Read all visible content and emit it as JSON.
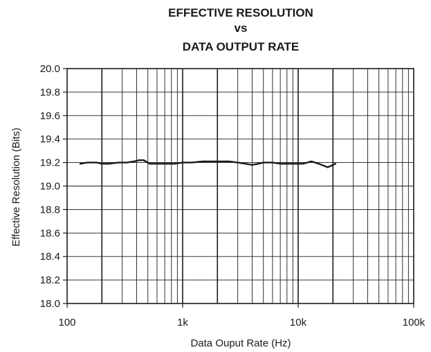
{
  "chart_data": {
    "type": "line",
    "title": [
      "EFFECTIVE RESOLUTION",
      "vs",
      "DATA OUTPUT RATE"
    ],
    "xlabel": "Data Ouput Rate (Hz)",
    "ylabel": "Effective Resolution (Bits)",
    "x_scale": "log",
    "xlim": [
      100,
      100000
    ],
    "ylim": [
      18.0,
      20.0
    ],
    "x_ticks": [
      100,
      1000,
      10000,
      100000
    ],
    "x_tick_labels": [
      "100",
      "1k",
      "10k",
      "100k"
    ],
    "y_ticks": [
      18.0,
      18.2,
      18.4,
      18.6,
      18.8,
      19.0,
      19.2,
      19.4,
      19.6,
      19.8,
      20.0
    ],
    "y_tick_labels": [
      "18.0",
      "18.2",
      "18.4",
      "18.6",
      "18.8",
      "19.0",
      "19.2",
      "19.4",
      "19.6",
      "19.8",
      "20.0"
    ],
    "grid": true,
    "line_color": "#1a1a1a",
    "series": [
      {
        "x": [
          130,
          150,
          180,
          200,
          230,
          280,
          330,
          380,
          420,
          460,
          520,
          600,
          700,
          850,
          1000,
          1200,
          1500,
          2000,
          2500,
          3000,
          3500,
          4000,
          4500,
          5000,
          6000,
          7000,
          8000,
          9000,
          10000,
          11000,
          12000,
          13000,
          14000,
          15000,
          16000,
          17000,
          18000,
          19000,
          20000,
          21000
        ],
        "y": [
          19.19,
          19.2,
          19.2,
          19.19,
          19.19,
          19.2,
          19.2,
          19.21,
          19.22,
          19.22,
          19.19,
          19.19,
          19.19,
          19.19,
          19.2,
          19.2,
          19.21,
          19.21,
          19.21,
          19.2,
          19.19,
          19.18,
          19.19,
          19.2,
          19.2,
          19.19,
          19.19,
          19.19,
          19.19,
          19.19,
          19.2,
          19.21,
          19.2,
          19.19,
          19.18,
          19.17,
          19.16,
          19.17,
          19.18,
          19.19
        ]
      }
    ]
  }
}
